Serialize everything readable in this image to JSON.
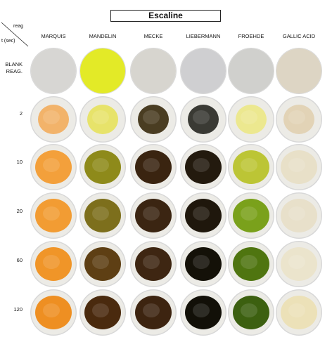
{
  "title": "Escaline",
  "corner": {
    "reag": "reag",
    "time": "t (sec)"
  },
  "columns": [
    "MARQUIS",
    "MANDELIN",
    "MECKE",
    "LIEBERMANN",
    "FROEHDE",
    "GALLIC ACID"
  ],
  "rows": [
    {
      "label_line1": "BLANK",
      "label_line2": "REAG."
    },
    {
      "label_line1": "2",
      "label_line2": ""
    },
    {
      "label_line1": "10",
      "label_line2": ""
    },
    {
      "label_line1": "20",
      "label_line2": ""
    },
    {
      "label_line1": "60",
      "label_line2": ""
    },
    {
      "label_line1": "120",
      "label_line2": ""
    }
  ],
  "colors": {
    "marquis": [
      "#d7d6d3",
      "#f2b36a",
      "#f3a03b",
      "#f29c33",
      "#f09528",
      "#ee8f22"
    ],
    "mandelin": [
      "#e3ea27",
      "#e7e36a",
      "#8e8a1a",
      "#7d6f1c",
      "#5e3f14",
      "#4a2a0e"
    ],
    "mecke": [
      "#d7d5cf",
      "#4a3d22",
      "#3a2410",
      "#3b2512",
      "#3e2612",
      "#3d2410"
    ],
    "liebermann": [
      "#cfcfd1",
      "#3a3a34",
      "#231a0e",
      "#1f170c",
      "#141108",
      "#121008"
    ],
    "froehde": [
      "#d0d0cd",
      "#ece88f",
      "#bcc535",
      "#7aa11b",
      "#4f7510",
      "#3c6010"
    ],
    "gallic": [
      "#ddd5c4",
      "#e2d3b6",
      "#e8e0c8",
      "#e8e0ca",
      "#ebe4cc",
      "#ece1b8"
    ],
    "dish_border": "#d8d8d8"
  }
}
